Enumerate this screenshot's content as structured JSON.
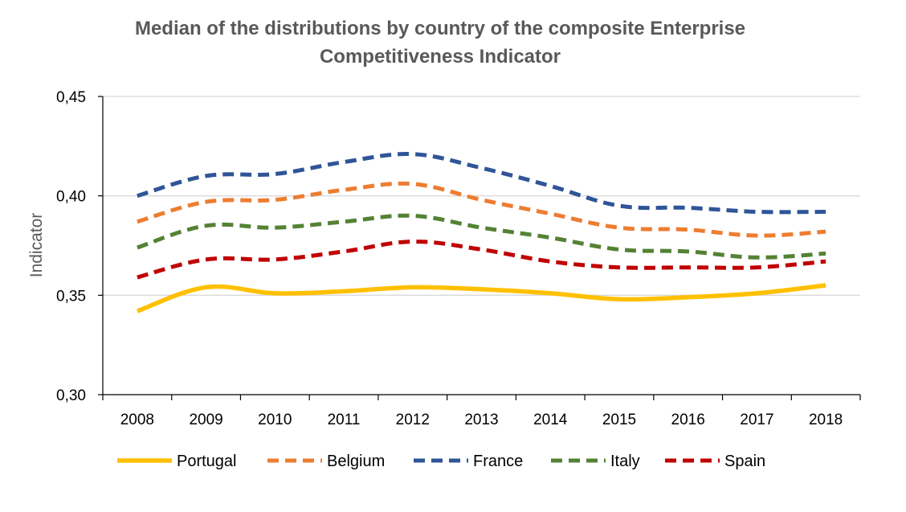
{
  "chart_data": {
    "type": "line",
    "title": [
      "Median of the distributions by country of the composite Enterprise",
      "Competitiveness Indicator"
    ],
    "xlabel": "",
    "ylabel": "Indicator",
    "ylim": [
      0.3,
      0.45
    ],
    "yticks": [
      0.3,
      0.35,
      0.4,
      0.45
    ],
    "ytick_labels": [
      "0,30",
      "0,35",
      "0,40",
      "0,45"
    ],
    "categories": [
      "2008",
      "2009",
      "2010",
      "2011",
      "2012",
      "2013",
      "2014",
      "2015",
      "2016",
      "2017",
      "2018"
    ],
    "grid": true,
    "legend_position": "bottom",
    "series": [
      {
        "name": "Portugal",
        "color": "#FFC000",
        "dash": "solid",
        "values": [
          0.342,
          0.354,
          0.351,
          0.352,
          0.354,
          0.353,
          0.351,
          0.348,
          0.349,
          0.351,
          0.355
        ]
      },
      {
        "name": "Belgium",
        "color": "#ED7D31",
        "dash": "dashed",
        "values": [
          0.387,
          0.397,
          0.398,
          0.403,
          0.406,
          0.398,
          0.391,
          0.384,
          0.383,
          0.38,
          0.382
        ]
      },
      {
        "name": "France",
        "color": "#2F5597",
        "dash": "dashed",
        "values": [
          0.4,
          0.41,
          0.411,
          0.417,
          0.421,
          0.414,
          0.405,
          0.395,
          0.394,
          0.392,
          0.392
        ]
      },
      {
        "name": "Italy",
        "color": "#548235",
        "dash": "dashed",
        "values": [
          0.374,
          0.385,
          0.384,
          0.387,
          0.39,
          0.384,
          0.379,
          0.373,
          0.372,
          0.369,
          0.371
        ]
      },
      {
        "name": "Spain",
        "color": "#C00000",
        "dash": "dashed",
        "values": [
          0.359,
          0.368,
          0.368,
          0.372,
          0.377,
          0.373,
          0.367,
          0.364,
          0.364,
          0.364,
          0.367
        ]
      }
    ]
  }
}
